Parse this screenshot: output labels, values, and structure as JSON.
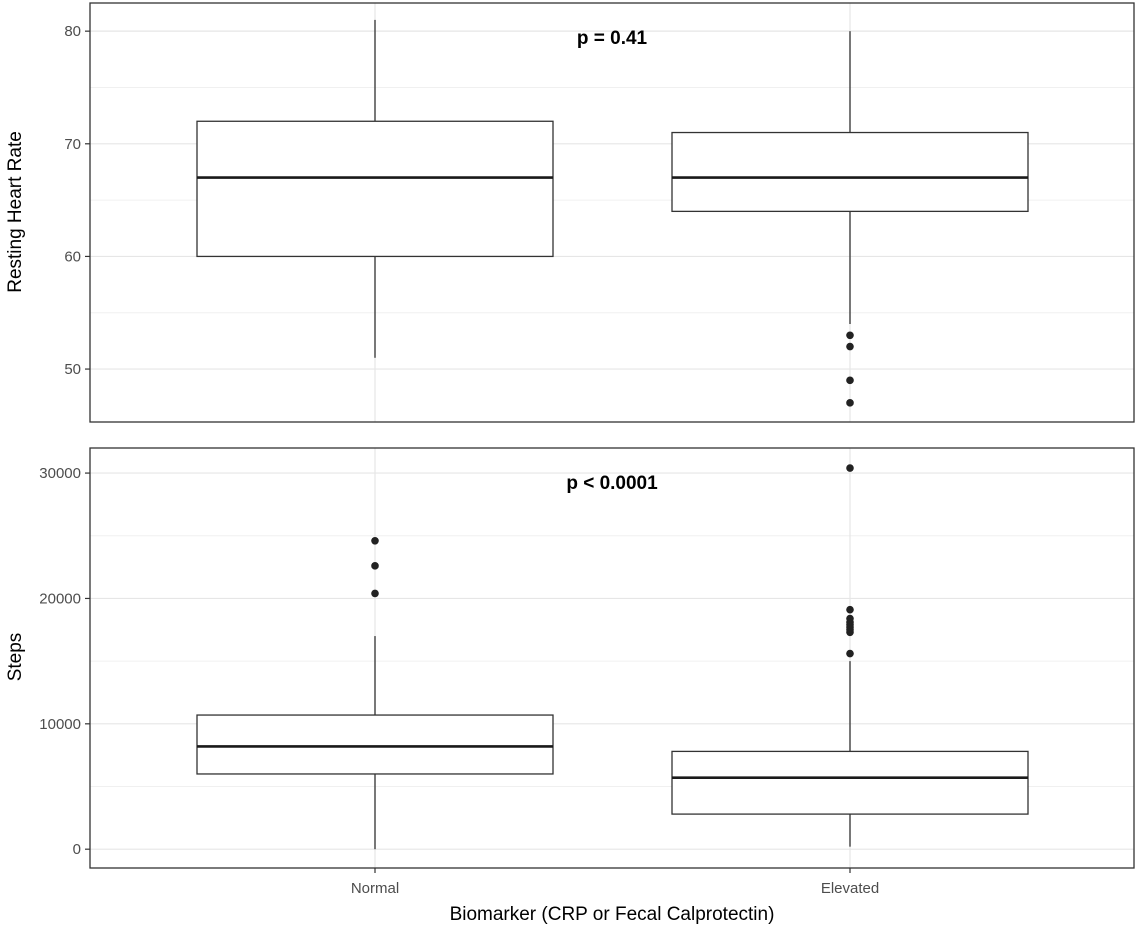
{
  "figure": {
    "xlabel": "Biomarker (CRP or Fecal Calprotectin)",
    "categories": [
      "Normal",
      "Elevated"
    ]
  },
  "chart_data": [
    {
      "type": "box",
      "ylabel": "Resting Heart Rate",
      "annotation": "p = 0.41",
      "ylim": [
        45.3,
        82.5
      ],
      "yticks": [
        50,
        60,
        70,
        80
      ],
      "ytick_labels": [
        "50",
        "60",
        "70",
        "80"
      ],
      "grid": true,
      "categories": [
        "Normal",
        "Elevated"
      ],
      "boxes": [
        {
          "category": "Normal",
          "min": 51,
          "q1": 60,
          "median": 67,
          "q3": 72,
          "max": 81,
          "outliers": []
        },
        {
          "category": "Elevated",
          "min": 54,
          "q1": 64,
          "median": 67,
          "q3": 71,
          "max": 80,
          "outliers": [
            53,
            52,
            49,
            47
          ]
        }
      ]
    },
    {
      "type": "box",
      "ylabel": "Steps",
      "annotation": "p < 0.0001",
      "ylim": [
        -1500,
        32000
      ],
      "yticks": [
        0,
        10000,
        20000,
        30000
      ],
      "ytick_labels": [
        "0",
        "10000",
        "20000",
        "30000"
      ],
      "grid": true,
      "categories": [
        "Normal",
        "Elevated"
      ],
      "boxes": [
        {
          "category": "Normal",
          "min": 0,
          "q1": 6000,
          "median": 8200,
          "q3": 10700,
          "max": 17000,
          "outliers": [
            20400,
            22600,
            24600
          ]
        },
        {
          "category": "Elevated",
          "min": 200,
          "q1": 2800,
          "median": 5700,
          "q3": 7800,
          "max": 15000,
          "outliers": [
            15600,
            17300,
            17500,
            17700,
            17900,
            18100,
            18400,
            19100,
            30400
          ]
        }
      ]
    }
  ]
}
